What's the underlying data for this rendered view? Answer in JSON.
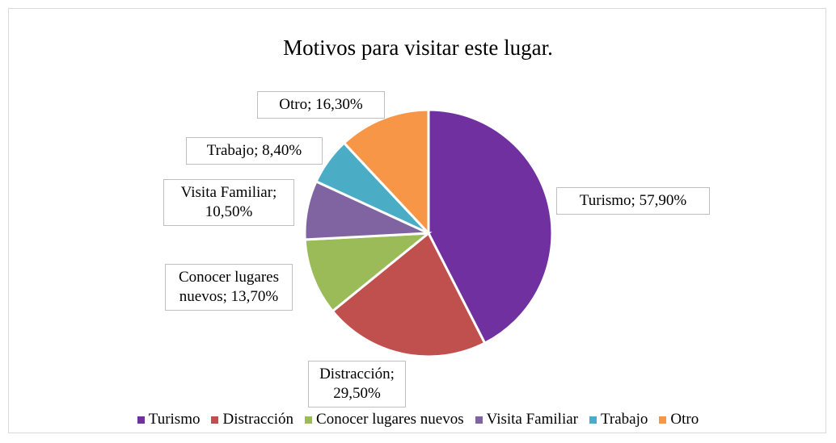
{
  "chart_data": {
    "type": "pie",
    "title": "Motivos para visitar este lugar.",
    "categories": [
      "Turismo",
      "Distracción",
      "Conocer lugares nuevos",
      "Visita Familiar",
      "Trabajo",
      "Otro"
    ],
    "values": [
      57.9,
      29.5,
      13.7,
      10.5,
      8.4,
      16.3
    ],
    "value_labels": [
      "Turismo; 57,90%",
      "Distracción; 29,50%",
      "Conocer lugares nuevos; 13,70%",
      "Visita Familiar; 10,50%",
      "Trabajo; 8,40%",
      "Otro; 16,30%"
    ],
    "colors": [
      "#7030a0",
      "#c0504d",
      "#9bbb59",
      "#8064a2",
      "#4bacc6",
      "#f79646"
    ],
    "legend": "bottom"
  }
}
